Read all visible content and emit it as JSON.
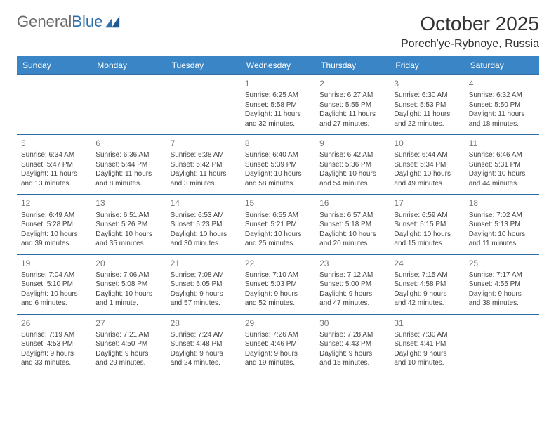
{
  "logo": {
    "text_gray": "General",
    "text_blue": "Blue"
  },
  "header": {
    "title": "October 2025",
    "location": "Porech'ye-Rybnoye, Russia"
  },
  "colors": {
    "header_bg": "#3a85c6",
    "header_text": "#ffffff",
    "row_border": "#2e6da4",
    "daynum": "#777777",
    "body_text": "#444444",
    "logo_gray": "#6a6a6a",
    "logo_blue": "#2f6fa8"
  },
  "typography": {
    "title_fontsize": 28,
    "location_fontsize": 16,
    "dayheader_fontsize": 12,
    "daynum_fontsize": 12,
    "cell_fontsize": 10
  },
  "day_headers": [
    "Sunday",
    "Monday",
    "Tuesday",
    "Wednesday",
    "Thursday",
    "Friday",
    "Saturday"
  ],
  "weeks": [
    [
      {
        "num": "",
        "lines": ""
      },
      {
        "num": "",
        "lines": ""
      },
      {
        "num": "",
        "lines": ""
      },
      {
        "num": "1",
        "lines": "Sunrise: 6:25 AM\nSunset: 5:58 PM\nDaylight: 11 hours and 32 minutes."
      },
      {
        "num": "2",
        "lines": "Sunrise: 6:27 AM\nSunset: 5:55 PM\nDaylight: 11 hours and 27 minutes."
      },
      {
        "num": "3",
        "lines": "Sunrise: 6:30 AM\nSunset: 5:53 PM\nDaylight: 11 hours and 22 minutes."
      },
      {
        "num": "4",
        "lines": "Sunrise: 6:32 AM\nSunset: 5:50 PM\nDaylight: 11 hours and 18 minutes."
      }
    ],
    [
      {
        "num": "5",
        "lines": "Sunrise: 6:34 AM\nSunset: 5:47 PM\nDaylight: 11 hours and 13 minutes."
      },
      {
        "num": "6",
        "lines": "Sunrise: 6:36 AM\nSunset: 5:44 PM\nDaylight: 11 hours and 8 minutes."
      },
      {
        "num": "7",
        "lines": "Sunrise: 6:38 AM\nSunset: 5:42 PM\nDaylight: 11 hours and 3 minutes."
      },
      {
        "num": "8",
        "lines": "Sunrise: 6:40 AM\nSunset: 5:39 PM\nDaylight: 10 hours and 58 minutes."
      },
      {
        "num": "9",
        "lines": "Sunrise: 6:42 AM\nSunset: 5:36 PM\nDaylight: 10 hours and 54 minutes."
      },
      {
        "num": "10",
        "lines": "Sunrise: 6:44 AM\nSunset: 5:34 PM\nDaylight: 10 hours and 49 minutes."
      },
      {
        "num": "11",
        "lines": "Sunrise: 6:46 AM\nSunset: 5:31 PM\nDaylight: 10 hours and 44 minutes."
      }
    ],
    [
      {
        "num": "12",
        "lines": "Sunrise: 6:49 AM\nSunset: 5:28 PM\nDaylight: 10 hours and 39 minutes."
      },
      {
        "num": "13",
        "lines": "Sunrise: 6:51 AM\nSunset: 5:26 PM\nDaylight: 10 hours and 35 minutes."
      },
      {
        "num": "14",
        "lines": "Sunrise: 6:53 AM\nSunset: 5:23 PM\nDaylight: 10 hours and 30 minutes."
      },
      {
        "num": "15",
        "lines": "Sunrise: 6:55 AM\nSunset: 5:21 PM\nDaylight: 10 hours and 25 minutes."
      },
      {
        "num": "16",
        "lines": "Sunrise: 6:57 AM\nSunset: 5:18 PM\nDaylight: 10 hours and 20 minutes."
      },
      {
        "num": "17",
        "lines": "Sunrise: 6:59 AM\nSunset: 5:15 PM\nDaylight: 10 hours and 15 minutes."
      },
      {
        "num": "18",
        "lines": "Sunrise: 7:02 AM\nSunset: 5:13 PM\nDaylight: 10 hours and 11 minutes."
      }
    ],
    [
      {
        "num": "19",
        "lines": "Sunrise: 7:04 AM\nSunset: 5:10 PM\nDaylight: 10 hours and 6 minutes."
      },
      {
        "num": "20",
        "lines": "Sunrise: 7:06 AM\nSunset: 5:08 PM\nDaylight: 10 hours and 1 minute."
      },
      {
        "num": "21",
        "lines": "Sunrise: 7:08 AM\nSunset: 5:05 PM\nDaylight: 9 hours and 57 minutes."
      },
      {
        "num": "22",
        "lines": "Sunrise: 7:10 AM\nSunset: 5:03 PM\nDaylight: 9 hours and 52 minutes."
      },
      {
        "num": "23",
        "lines": "Sunrise: 7:12 AM\nSunset: 5:00 PM\nDaylight: 9 hours and 47 minutes."
      },
      {
        "num": "24",
        "lines": "Sunrise: 7:15 AM\nSunset: 4:58 PM\nDaylight: 9 hours and 42 minutes."
      },
      {
        "num": "25",
        "lines": "Sunrise: 7:17 AM\nSunset: 4:55 PM\nDaylight: 9 hours and 38 minutes."
      }
    ],
    [
      {
        "num": "26",
        "lines": "Sunrise: 7:19 AM\nSunset: 4:53 PM\nDaylight: 9 hours and 33 minutes."
      },
      {
        "num": "27",
        "lines": "Sunrise: 7:21 AM\nSunset: 4:50 PM\nDaylight: 9 hours and 29 minutes."
      },
      {
        "num": "28",
        "lines": "Sunrise: 7:24 AM\nSunset: 4:48 PM\nDaylight: 9 hours and 24 minutes."
      },
      {
        "num": "29",
        "lines": "Sunrise: 7:26 AM\nSunset: 4:46 PM\nDaylight: 9 hours and 19 minutes."
      },
      {
        "num": "30",
        "lines": "Sunrise: 7:28 AM\nSunset: 4:43 PM\nDaylight: 9 hours and 15 minutes."
      },
      {
        "num": "31",
        "lines": "Sunrise: 7:30 AM\nSunset: 4:41 PM\nDaylight: 9 hours and 10 minutes."
      },
      {
        "num": "",
        "lines": ""
      }
    ]
  ]
}
